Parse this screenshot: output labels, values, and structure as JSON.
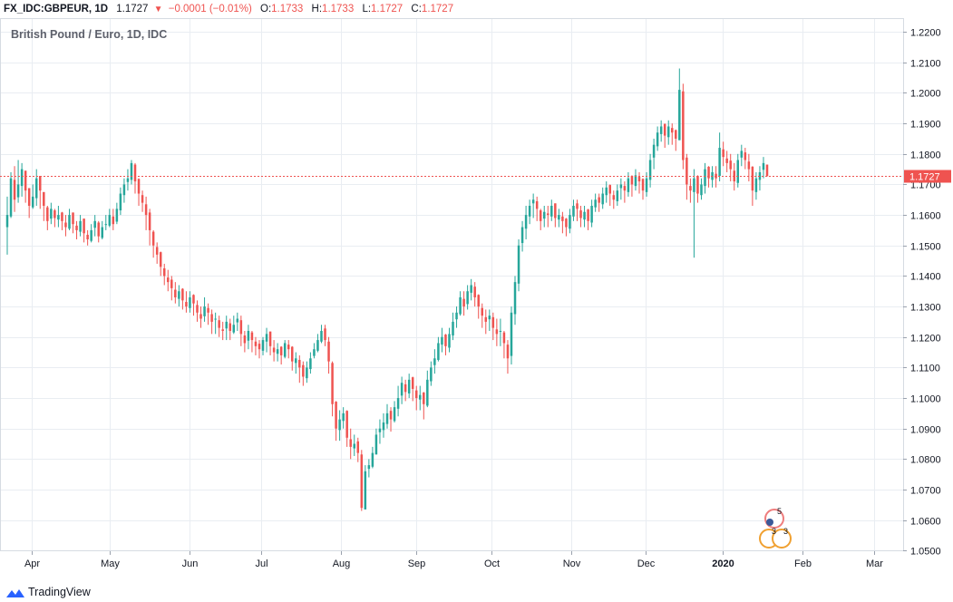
{
  "header": {
    "symbol": "FX_IDC:GBPEUR, 1D",
    "last": "1.1727",
    "change": "−0.0001 (−0.01%)",
    "o_label": "O:",
    "o": "1.1733",
    "h_label": "H:",
    "h": "1.1733",
    "l_label": "L:",
    "l": "1.1727",
    "c_label": "C:",
    "c": "1.1727"
  },
  "colors": {
    "up": "#26a69a",
    "down": "#ef5350",
    "grid": "#e9edf2",
    "axis": "#9aa1ad"
  },
  "brand": {
    "name": "TradingView"
  },
  "chart_data": {
    "type": "candlestick",
    "title": "British Pound / Euro, 1D, IDC",
    "ylim": [
      1.0498,
      1.2245
    ],
    "y_ticks": [
      "1.0500",
      "1.0600",
      "1.0700",
      "1.0800",
      "1.0900",
      "1.1000",
      "1.1100",
      "1.1200",
      "1.1300",
      "1.1400",
      "1.1500",
      "1.1600",
      "1.1700",
      "1.1800",
      "1.1900",
      "1.2000",
      "1.2100",
      "1.2200"
    ],
    "x_ticks": [
      "Apr",
      "May",
      "Jun",
      "Jul",
      "Aug",
      "Sep",
      "Oct",
      "Nov",
      "Dec",
      "2020",
      "Feb",
      "Mar"
    ],
    "last_price_label": "1.1727",
    "last_price": 1.1727,
    "events": {
      "upper_badge": "5",
      "lower_badges": [
        "3",
        "3"
      ]
    },
    "series": [
      {
        "name": "close",
        "values": [
          1.16,
          1.172,
          1.165,
          1.17,
          1.175,
          1.168,
          1.163,
          1.166,
          1.172,
          1.168,
          1.163,
          1.158,
          1.162,
          1.159,
          1.16,
          1.158,
          1.156,
          1.16,
          1.157,
          1.155,
          1.158,
          1.154,
          1.152,
          1.155,
          1.158,
          1.153,
          1.156,
          1.157,
          1.16,
          1.157,
          1.162,
          1.167,
          1.17,
          1.172,
          1.177,
          1.171,
          1.167,
          1.164,
          1.16,
          1.155,
          1.15,
          1.147,
          1.143,
          1.14,
          1.138,
          1.136,
          1.133,
          1.135,
          1.132,
          1.13,
          1.133,
          1.131,
          1.128,
          1.126,
          1.13,
          1.128,
          1.125,
          1.126,
          1.123,
          1.122,
          1.125,
          1.122,
          1.124,
          1.126,
          1.121,
          1.118,
          1.122,
          1.119,
          1.117,
          1.116,
          1.119,
          1.121,
          1.117,
          1.115,
          1.116,
          1.114,
          1.118,
          1.116,
          1.112,
          1.113,
          1.11,
          1.107,
          1.11,
          1.113,
          1.116,
          1.119,
          1.122,
          1.119,
          1.112,
          1.098,
          1.09,
          1.093,
          1.095,
          1.087,
          1.084,
          1.085,
          1.082,
          1.064,
          1.076,
          1.078,
          1.082,
          1.088,
          1.09,
          1.092,
          1.095,
          1.093,
          1.097,
          1.1,
          1.105,
          1.102,
          1.106,
          1.103,
          1.1,
          1.101,
          1.098,
          1.106,
          1.11,
          1.113,
          1.118,
          1.12,
          1.117,
          1.121,
          1.125,
          1.128,
          1.133,
          1.13,
          1.135,
          1.137,
          1.133,
          1.13,
          1.127,
          1.125,
          1.127,
          1.123,
          1.121,
          1.122,
          1.118,
          1.113,
          1.128,
          1.138,
          1.15,
          1.156,
          1.16,
          1.163,
          1.165,
          1.162,
          1.158,
          1.161,
          1.16,
          1.163,
          1.159,
          1.16,
          1.158,
          1.156,
          1.16,
          1.163,
          1.162,
          1.159,
          1.161,
          1.158,
          1.163,
          1.165,
          1.164,
          1.167,
          1.169,
          1.167,
          1.165,
          1.168,
          1.17,
          1.168,
          1.172,
          1.17,
          1.173,
          1.171,
          1.168,
          1.172,
          1.178,
          1.183,
          1.187,
          1.189,
          1.186,
          1.189,
          1.187,
          1.185,
          1.201,
          1.178,
          1.17,
          1.168,
          1.172,
          1.167,
          1.17,
          1.175,
          1.172,
          1.174,
          1.172,
          1.182,
          1.179,
          1.177,
          1.175,
          1.171,
          1.178,
          1.181,
          1.178,
          1.175,
          1.168,
          1.172,
          1.174,
          1.177,
          1.1727
        ]
      },
      {
        "name": "high",
        "values": [
          1.166,
          1.174,
          1.176,
          1.178,
          1.177,
          1.173,
          1.168,
          1.17,
          1.175,
          1.171,
          1.167,
          1.163,
          1.164,
          1.162,
          1.163,
          1.161,
          1.16,
          1.162,
          1.16,
          1.158,
          1.16,
          1.158,
          1.155,
          1.157,
          1.16,
          1.158,
          1.158,
          1.16,
          1.162,
          1.162,
          1.164,
          1.169,
          1.172,
          1.175,
          1.178,
          1.177,
          1.172,
          1.168,
          1.166,
          1.162,
          1.155,
          1.151,
          1.148,
          1.144,
          1.142,
          1.14,
          1.138,
          1.137,
          1.136,
          1.135,
          1.135,
          1.134,
          1.132,
          1.13,
          1.133,
          1.131,
          1.129,
          1.128,
          1.127,
          1.125,
          1.127,
          1.126,
          1.127,
          1.128,
          1.127,
          1.122,
          1.124,
          1.122,
          1.12,
          1.119,
          1.12,
          1.123,
          1.121,
          1.119,
          1.118,
          1.117,
          1.119,
          1.119,
          1.117,
          1.115,
          1.114,
          1.112,
          1.112,
          1.115,
          1.118,
          1.121,
          1.124,
          1.124,
          1.12,
          1.112,
          1.099,
          1.096,
          1.097,
          1.096,
          1.09,
          1.088,
          1.087,
          1.083,
          1.078,
          1.08,
          1.084,
          1.09,
          1.093,
          1.095,
          1.098,
          1.097,
          1.099,
          1.104,
          1.107,
          1.106,
          1.108,
          1.107,
          1.104,
          1.104,
          1.102,
          1.109,
          1.112,
          1.116,
          1.12,
          1.123,
          1.121,
          1.123,
          1.128,
          1.13,
          1.135,
          1.135,
          1.137,
          1.139,
          1.138,
          1.134,
          1.131,
          1.129,
          1.129,
          1.128,
          1.126,
          1.126,
          1.122,
          1.119,
          1.13,
          1.14,
          1.152,
          1.158,
          1.163,
          1.165,
          1.167,
          1.166,
          1.162,
          1.163,
          1.163,
          1.165,
          1.163,
          1.162,
          1.161,
          1.159,
          1.162,
          1.165,
          1.165,
          1.163,
          1.163,
          1.162,
          1.165,
          1.167,
          1.167,
          1.169,
          1.171,
          1.17,
          1.168,
          1.17,
          1.172,
          1.171,
          1.174,
          1.173,
          1.175,
          1.174,
          1.172,
          1.174,
          1.18,
          1.185,
          1.189,
          1.191,
          1.19,
          1.191,
          1.19,
          1.188,
          1.208,
          1.203,
          1.18,
          1.172,
          1.175,
          1.173,
          1.172,
          1.177,
          1.176,
          1.176,
          1.176,
          1.187,
          1.184,
          1.181,
          1.18,
          1.177,
          1.18,
          1.183,
          1.182,
          1.18,
          1.176,
          1.174,
          1.176,
          1.179,
          1.1733
        ]
      },
      {
        "name": "low",
        "values": [
          1.147,
          1.159,
          1.161,
          1.164,
          1.166,
          1.164,
          1.159,
          1.162,
          1.163,
          1.162,
          1.158,
          1.155,
          1.157,
          1.156,
          1.156,
          1.155,
          1.153,
          1.155,
          1.154,
          1.152,
          1.153,
          1.151,
          1.15,
          1.151,
          1.153,
          1.151,
          1.152,
          1.155,
          1.156,
          1.155,
          1.157,
          1.16,
          1.164,
          1.168,
          1.17,
          1.167,
          1.163,
          1.161,
          1.155,
          1.15,
          1.146,
          1.144,
          1.14,
          1.137,
          1.135,
          1.132,
          1.131,
          1.13,
          1.129,
          1.128,
          1.128,
          1.127,
          1.125,
          1.123,
          1.125,
          1.124,
          1.121,
          1.121,
          1.12,
          1.119,
          1.119,
          1.119,
          1.121,
          1.122,
          1.117,
          1.115,
          1.116,
          1.115,
          1.114,
          1.113,
          1.114,
          1.115,
          1.114,
          1.112,
          1.112,
          1.111,
          1.113,
          1.113,
          1.109,
          1.108,
          1.105,
          1.104,
          1.105,
          1.108,
          1.113,
          1.115,
          1.118,
          1.117,
          1.108,
          1.094,
          1.086,
          1.086,
          1.09,
          1.084,
          1.08,
          1.081,
          1.079,
          1.063,
          1.072,
          1.074,
          1.077,
          1.082,
          1.085,
          1.087,
          1.09,
          1.089,
          1.092,
          1.094,
          1.098,
          1.099,
          1.1,
          1.099,
          1.096,
          1.096,
          1.093,
          1.097,
          1.104,
          1.108,
          1.112,
          1.115,
          1.114,
          1.115,
          1.119,
          1.123,
          1.127,
          1.127,
          1.129,
          1.132,
          1.13,
          1.126,
          1.123,
          1.121,
          1.122,
          1.119,
          1.117,
          1.117,
          1.113,
          1.108,
          1.111,
          1.124,
          1.135,
          1.148,
          1.152,
          1.157,
          1.159,
          1.158,
          1.155,
          1.156,
          1.156,
          1.158,
          1.156,
          1.156,
          1.154,
          1.153,
          1.154,
          1.158,
          1.158,
          1.156,
          1.156,
          1.155,
          1.156,
          1.161,
          1.161,
          1.162,
          1.164,
          1.163,
          1.162,
          1.163,
          1.165,
          1.164,
          1.166,
          1.166,
          1.168,
          1.167,
          1.165,
          1.166,
          1.169,
          1.175,
          1.181,
          1.184,
          1.182,
          1.183,
          1.183,
          1.181,
          1.186,
          1.175,
          1.165,
          1.164,
          1.146,
          1.164,
          1.165,
          1.167,
          1.169,
          1.169,
          1.169,
          1.171,
          1.176,
          1.174,
          1.171,
          1.168,
          1.169,
          1.176,
          1.175,
          1.171,
          1.163,
          1.165,
          1.168,
          1.172,
          1.1727
        ]
      }
    ]
  }
}
